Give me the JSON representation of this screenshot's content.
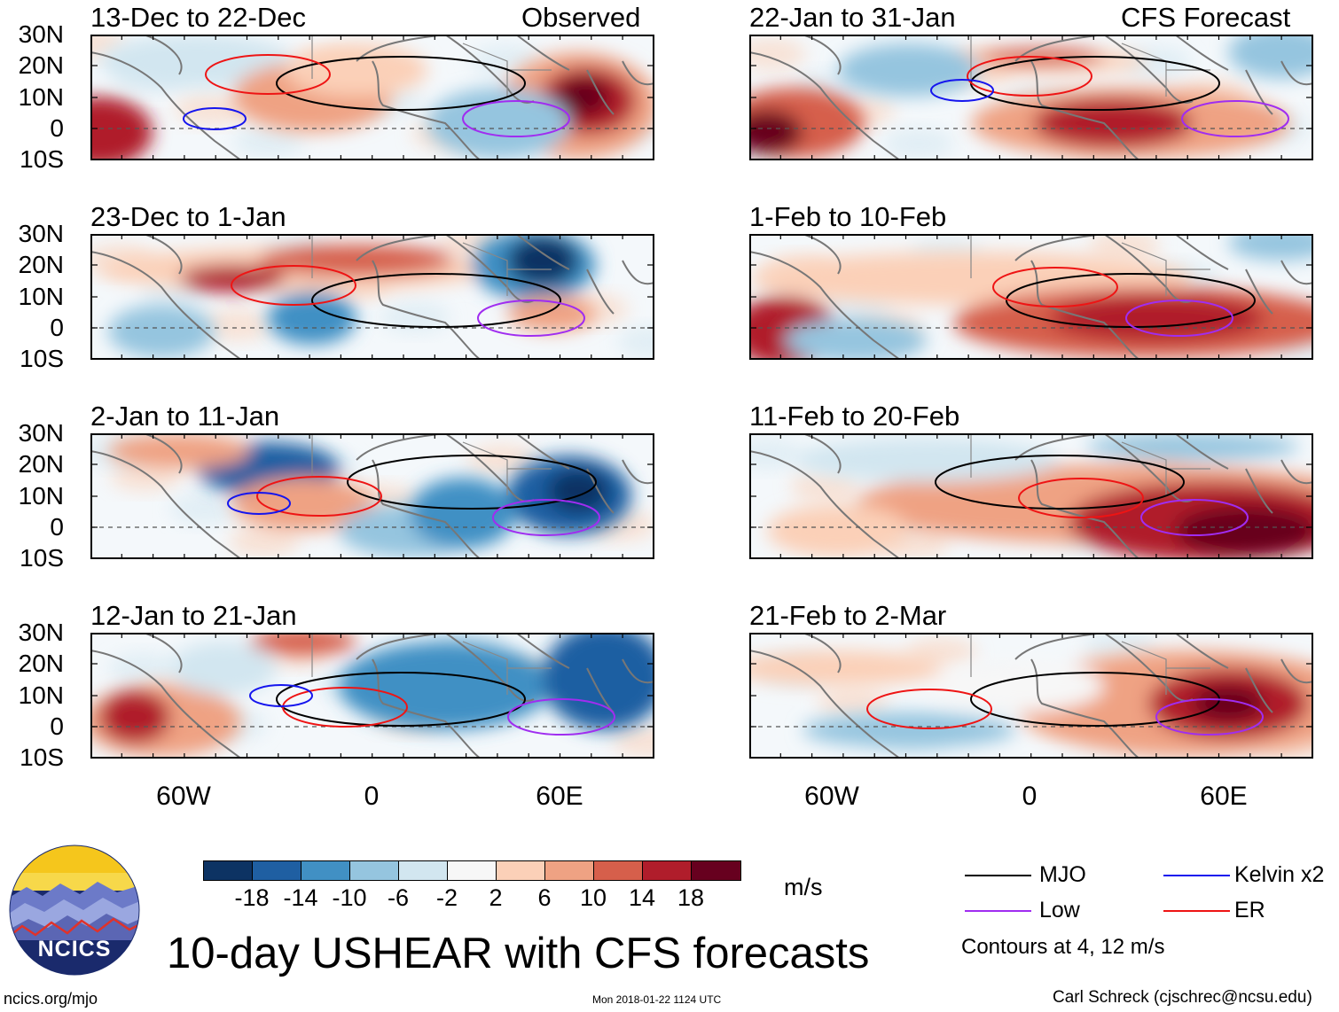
{
  "header": {
    "observed_label": "Observed",
    "forecast_label": "CFS Forecast"
  },
  "panels": [
    {
      "id": "p1",
      "title": "13-Dec to 22-Dec",
      "col": 0,
      "row": 0
    },
    {
      "id": "p2",
      "title": "23-Dec to 1-Jan",
      "col": 0,
      "row": 1
    },
    {
      "id": "p3",
      "title": "2-Jan to 11-Jan",
      "col": 0,
      "row": 2
    },
    {
      "id": "p4",
      "title": "12-Jan to 21-Jan",
      "col": 0,
      "row": 3
    },
    {
      "id": "p5",
      "title": "22-Jan to 31-Jan",
      "col": 1,
      "row": 0
    },
    {
      "id": "p6",
      "title": "1-Feb to 10-Feb",
      "col": 1,
      "row": 1
    },
    {
      "id": "p7",
      "title": "11-Feb to 20-Feb",
      "col": 1,
      "row": 2
    },
    {
      "id": "p8",
      "title": "21-Feb to 2-Mar",
      "col": 1,
      "row": 3
    }
  ],
  "axes": {
    "lat_labels": [
      "30N",
      "20N",
      "10N",
      "0",
      "10S"
    ],
    "lon_labels": [
      "60W",
      "0",
      "60E"
    ]
  },
  "colorbar": {
    "ticks": [
      "-18",
      "-14",
      "-10",
      "-6",
      "-2",
      "2",
      "6",
      "10",
      "14",
      "18"
    ],
    "colors": [
      "#0d3363",
      "#1f5fa2",
      "#4190c4",
      "#95c5df",
      "#d2e6f0",
      "#f7f7f7",
      "#fbd0b8",
      "#efa283",
      "#d65f4b",
      "#b01d2b",
      "#67001f"
    ],
    "units": "m/s"
  },
  "legend": {
    "items": [
      {
        "label": "MJO",
        "color": "#000000"
      },
      {
        "label": "Kelvin x2",
        "color": "#1515ee"
      },
      {
        "label": "Low",
        "color": "#a02df0"
      },
      {
        "label": "ER",
        "color": "#ee1414"
      }
    ],
    "contours_note": "Contours at 4, 12 m/s"
  },
  "footer": {
    "logo_text": "NCICS",
    "main_title": "10-day USHEAR with CFS forecasts",
    "url": "ncics.org/mjo",
    "timestamp": "Mon 2018-01-22 1124 UTC",
    "credit": "Carl Schreck (cjschrec@ncsu.edu)"
  },
  "chart_data": {
    "type": "heatmap",
    "title": "10-day USHEAR with CFS forecasts",
    "variable": "USHEAR anomaly",
    "units": "m/s",
    "lat_range": [
      -10,
      30
    ],
    "lon_range": [
      -90,
      90
    ],
    "lat_ticks": [
      "30N",
      "20N",
      "10N",
      "0",
      "10S"
    ],
    "lon_ticks": [
      "60W",
      "0",
      "60E"
    ],
    "color_levels": [
      -18,
      -14,
      -10,
      -6,
      -2,
      2,
      6,
      10,
      14,
      18
    ],
    "contour_levels": [
      4,
      12
    ],
    "series": [
      {
        "name": "Observed",
        "periods": [
          "13-Dec to 22-Dec",
          "23-Dec to 1-Jan",
          "2-Jan to 11-Jan",
          "12-Jan to 21-Jan"
        ]
      },
      {
        "name": "CFS Forecast",
        "periods": [
          "22-Jan to 31-Jan",
          "1-Feb to 10-Feb",
          "11-Feb to 20-Feb",
          "21-Feb to 2-Mar"
        ]
      }
    ],
    "contours": [
      "MJO",
      "Kelvin x2",
      "Low",
      "ER"
    ]
  }
}
